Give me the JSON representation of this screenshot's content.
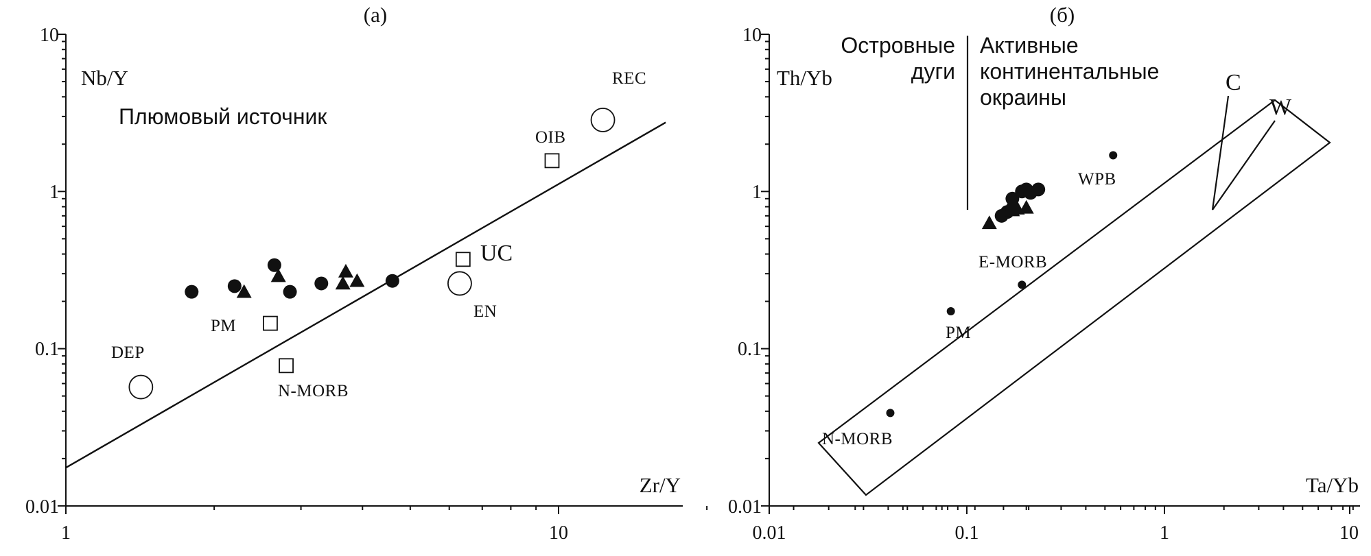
{
  "chart_data": [
    {
      "type": "scatter",
      "panel_label": "(a)",
      "title": "",
      "xlabel": "Zr/Y",
      "ylabel": "Nb/Y",
      "xscale": "log",
      "yscale": "log",
      "xlim": [
        1,
        25
      ],
      "ylim": [
        0.01,
        10
      ],
      "x_ticks": [
        "1",
        "10"
      ],
      "y_ticks": [
        "0.01",
        "0.1",
        "1",
        "10"
      ],
      "field_label": "Плюмовый источник",
      "trend_line": [
        [
          1,
          0.0175
        ],
        [
          16.5,
          2.75
        ]
      ],
      "series": [
        {
          "marker": "circle-filled",
          "points": [
            [
              1.8,
              0.23
            ],
            [
              2.2,
              0.25
            ],
            [
              2.65,
              0.34
            ],
            [
              2.85,
              0.23
            ],
            [
              3.3,
              0.26
            ],
            [
              4.6,
              0.27
            ]
          ]
        },
        {
          "marker": "triangle-filled",
          "points": [
            [
              2.3,
              0.23
            ],
            [
              2.7,
              0.29
            ],
            [
              3.7,
              0.31
            ],
            [
              3.65,
              0.26
            ],
            [
              3.9,
              0.27
            ]
          ]
        }
      ],
      "reference_points": [
        {
          "label": "DEP",
          "x": 1.42,
          "y": 0.057,
          "marker": "circle-open"
        },
        {
          "label": "PM",
          "x": 2.6,
          "y": 0.145,
          "marker": "square-open"
        },
        {
          "label": "N-MORB",
          "x": 2.8,
          "y": 0.078,
          "marker": "square-open"
        },
        {
          "label": "EN",
          "x": 6.3,
          "y": 0.26,
          "marker": "circle-open"
        },
        {
          "label": "UC",
          "x": 6.4,
          "y": 0.37,
          "marker": "square-open"
        },
        {
          "label": "OIB",
          "x": 9.7,
          "y": 1.57,
          "marker": "square-open"
        },
        {
          "label": "REC",
          "x": 12.3,
          "y": 2.85,
          "marker": "circle-open"
        }
      ]
    },
    {
      "type": "scatter",
      "panel_label": "(б)",
      "title": "",
      "xlabel": "Ta/Yb",
      "ylabel": "Th/Yb",
      "xscale": "log",
      "yscale": "log",
      "xlim": [
        0.01,
        10
      ],
      "ylim": [
        0.01,
        10
      ],
      "x_ticks": [
        "0.01",
        "0.1",
        "1",
        "10"
      ],
      "y_ticks": [
        "0.01",
        "0.1",
        "1",
        "10"
      ],
      "region_labels": {
        "island_arcs": [
          "Островные",
          "дуги"
        ],
        "active_margins": [
          "Активные",
          "континентальные",
          "окраины"
        ]
      },
      "vector_labels": [
        "C",
        "W"
      ],
      "series": [
        {
          "marker": "circle-filled",
          "points": [
            [
              0.16,
              0.74
            ],
            [
              0.15,
              0.7
            ],
            [
              0.17,
              0.9
            ],
            [
              0.19,
              1.0
            ],
            [
              0.2,
              1.03
            ],
            [
              0.21,
              0.98
            ],
            [
              0.23,
              1.03
            ],
            [
              0.17,
              0.78
            ]
          ]
        },
        {
          "marker": "triangle-filled",
          "points": [
            [
              0.13,
              0.63
            ],
            [
              0.17,
              0.76
            ],
            [
              0.18,
              0.78
            ],
            [
              0.2,
              0.79
            ]
          ]
        }
      ],
      "reference_points": [
        {
          "label": "WPB",
          "x": 0.55,
          "y": 1.7
        },
        {
          "label": "E-MORB",
          "x": 0.19,
          "y": 0.255
        },
        {
          "label": "PM",
          "x": 0.083,
          "y": 0.173
        },
        {
          "label": "N-MORB",
          "x": 0.041,
          "y": 0.039
        }
      ]
    }
  ],
  "colors": {
    "ink": "#111111",
    "background": "#ffffff"
  }
}
